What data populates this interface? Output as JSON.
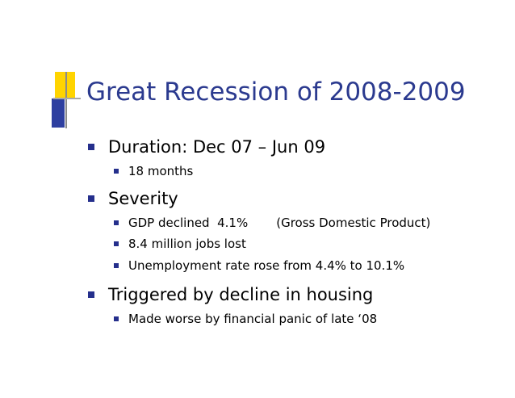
{
  "colors": {
    "title": "#2b3a8f",
    "bullet": "#252f8c",
    "text": "#000000",
    "deco_yellow": "#ffd400",
    "deco_blue": "#2e3fa0"
  },
  "slide": {
    "title": "Great Recession of 2008-2009",
    "bullets": [
      {
        "text": "Duration: Dec 07 – Jun 09",
        "sub": [
          "18 months"
        ]
      },
      {
        "text": "Severity",
        "sub": [
          "GDP declined  4.1%",
          "8.4 million jobs lost",
          "Unemployment rate rose from 4.4% to 10.1%"
        ],
        "gdp_note": "(Gross Domestic Product)"
      },
      {
        "text": "Triggered by decline in housing",
        "sub": [
          "Made worse by financial panic of late ‘08"
        ]
      }
    ]
  }
}
